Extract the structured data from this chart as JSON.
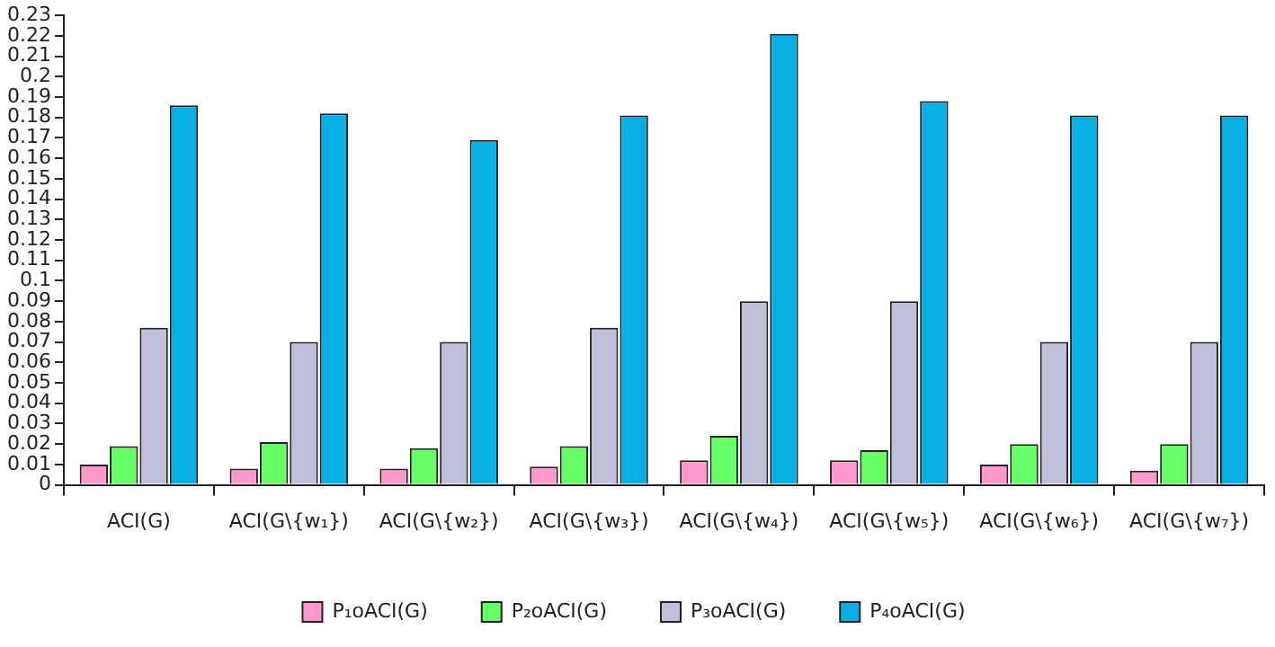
{
  "chart_data": {
    "type": "bar",
    "categories": [
      "ACI(G)",
      "ACI(G\\{w₁})",
      "ACI(G\\{w₂})",
      "ACI(G\\{w₃})",
      "ACI(G\\{w₄})",
      "ACI(G\\{w₅})",
      "ACI(G\\{w₆})",
      "ACI(G\\{w₇})"
    ],
    "series": [
      {
        "name": "P₁oACI(G)",
        "color": "#ff99cc",
        "values": [
          0.01,
          0.008,
          0.008,
          0.009,
          0.012,
          0.012,
          0.01,
          0.007
        ]
      },
      {
        "name": "P₂oACI(G)",
        "color": "#66ff66",
        "values": [
          0.019,
          0.021,
          0.018,
          0.019,
          0.024,
          0.017,
          0.02,
          0.02
        ]
      },
      {
        "name": "P₃oACI(G)",
        "color": "#c0bfd9",
        "values": [
          0.077,
          0.07,
          0.07,
          0.077,
          0.09,
          0.09,
          0.07,
          0.07
        ]
      },
      {
        "name": "P₄oACI(G)",
        "color": "#08b0e6",
        "values": [
          0.186,
          0.182,
          0.169,
          0.181,
          0.221,
          0.188,
          0.181,
          0.181
        ]
      }
    ],
    "ylim": [
      0,
      0.23
    ],
    "yticks": [
      0,
      0.01,
      0.02,
      0.03,
      0.04,
      0.05,
      0.06,
      0.07,
      0.08,
      0.09,
      0.1,
      0.11,
      0.12,
      0.13,
      0.14,
      0.15,
      0.16,
      0.17,
      0.18,
      0.19,
      0.2,
      0.21,
      0.22,
      0.23
    ],
    "grid": false,
    "legend": "bottom"
  }
}
